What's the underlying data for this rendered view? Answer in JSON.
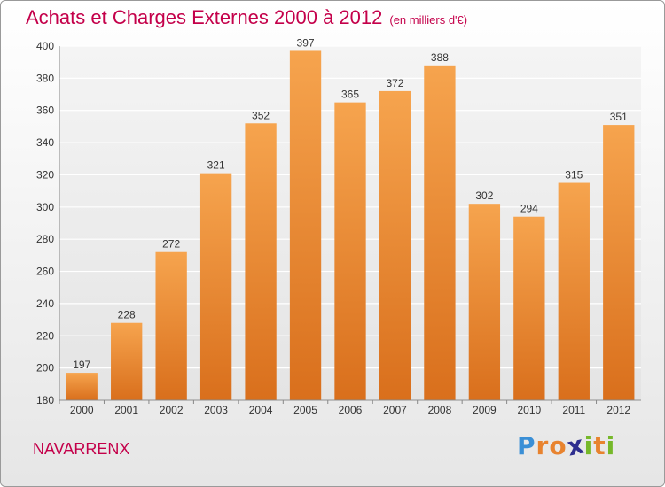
{
  "chart_data": {
    "type": "bar",
    "title": "Achats et Charges Externes 2000 à 2012",
    "subtitle": "(en milliers d'€)",
    "categories": [
      "2000",
      "2001",
      "2002",
      "2003",
      "2004",
      "2005",
      "2006",
      "2007",
      "2008",
      "2009",
      "2010",
      "2011",
      "2012"
    ],
    "values": [
      197,
      228,
      272,
      321,
      352,
      397,
      365,
      372,
      388,
      302,
      294,
      315,
      351
    ],
    "ylim": [
      180,
      400
    ],
    "yticks": [
      180,
      200,
      220,
      240,
      260,
      280,
      300,
      320,
      340,
      360,
      380,
      400
    ],
    "grid": true,
    "bar_color": "#e8832f"
  },
  "footer": {
    "label": "NAVARRENX"
  },
  "logo": {
    "letters": [
      "P",
      "r",
      "o",
      "x",
      "i",
      "t",
      "i"
    ],
    "colors": [
      "#3a8fd6",
      "#e8832f",
      "#e8832f",
      "#2e2e8f",
      "#76b82a",
      "#e8832f",
      "#76b82a"
    ]
  }
}
